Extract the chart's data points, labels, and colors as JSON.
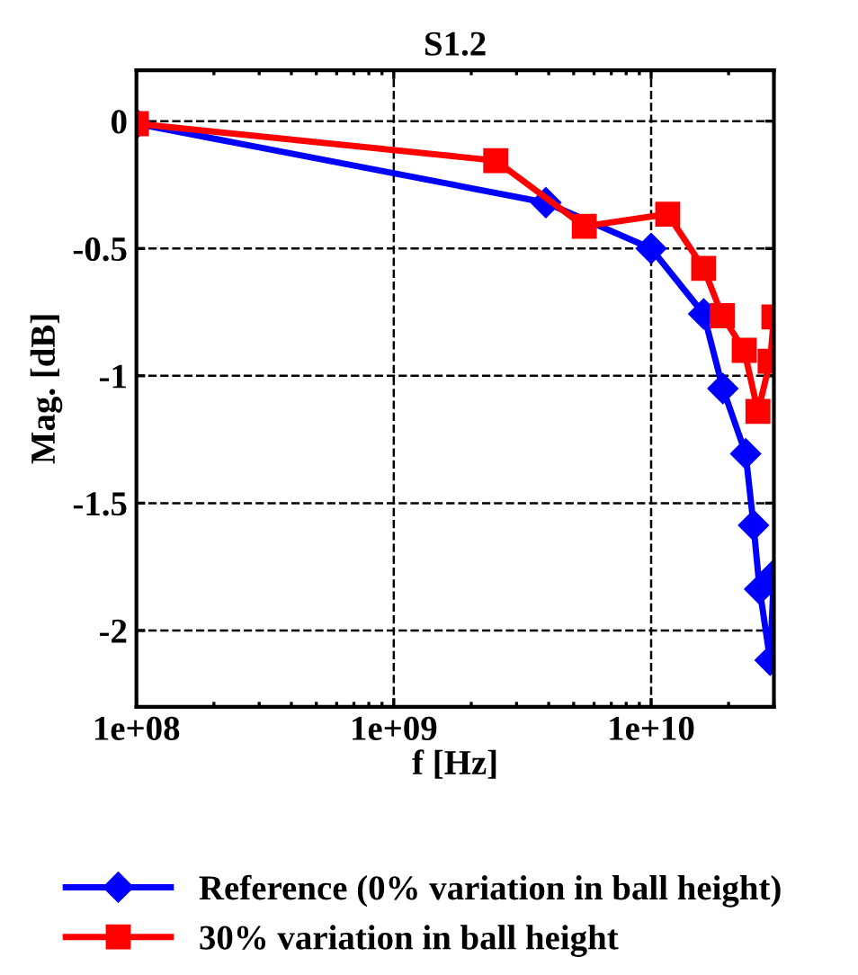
{
  "chart_data": {
    "type": "line",
    "title": "S1.2",
    "xlabel": "f [Hz]",
    "ylabel": "Mag. [dB]",
    "log": "x",
    "xlim": [
      100000000.0,
      30000000000.0
    ],
    "xticks": [
      {
        "value": 100000000.0,
        "label": "1e+08"
      },
      {
        "value": 1000000000.0,
        "label": "1e+09"
      },
      {
        "value": 10000000000.0,
        "label": "1e+10"
      }
    ],
    "ylim": [
      -2.3,
      0.2
    ],
    "yticks": [
      0,
      -0.5,
      -1,
      -1.5,
      -2
    ],
    "grid": true,
    "legend": "bottom",
    "line_style": "solid",
    "series": [
      {
        "name": "Reference (0% variation in ball height)",
        "color": "#0000ff",
        "marker": "diamond",
        "x": [
          100000000.0,
          3900000000.0,
          10000000000.0,
          16000000000.0,
          19000000000.0,
          23300000000.0,
          25000000000.0,
          26400000000.0,
          29000000000.0,
          30000000000.0
        ],
        "values": [
          -0.01,
          -0.32,
          -0.5,
          -0.757,
          -1.05,
          -1.306,
          -1.587,
          -1.838,
          -2.117,
          -1.78
        ]
      },
      {
        "name": "30% variation in ball height",
        "color": "#ff0000",
        "marker": "square",
        "x": [
          100000000.0,
          2490000000.0,
          5500000000.0,
          11600000000.0,
          16000000000.0,
          18900000000.0,
          23000000000.0,
          26000000000.0,
          29000000000.0,
          30000000000.0
        ],
        "values": [
          -0.01,
          -0.155,
          -0.413,
          -0.365,
          -0.578,
          -0.764,
          -0.9,
          -1.14,
          -0.943,
          -0.769
        ]
      }
    ]
  }
}
